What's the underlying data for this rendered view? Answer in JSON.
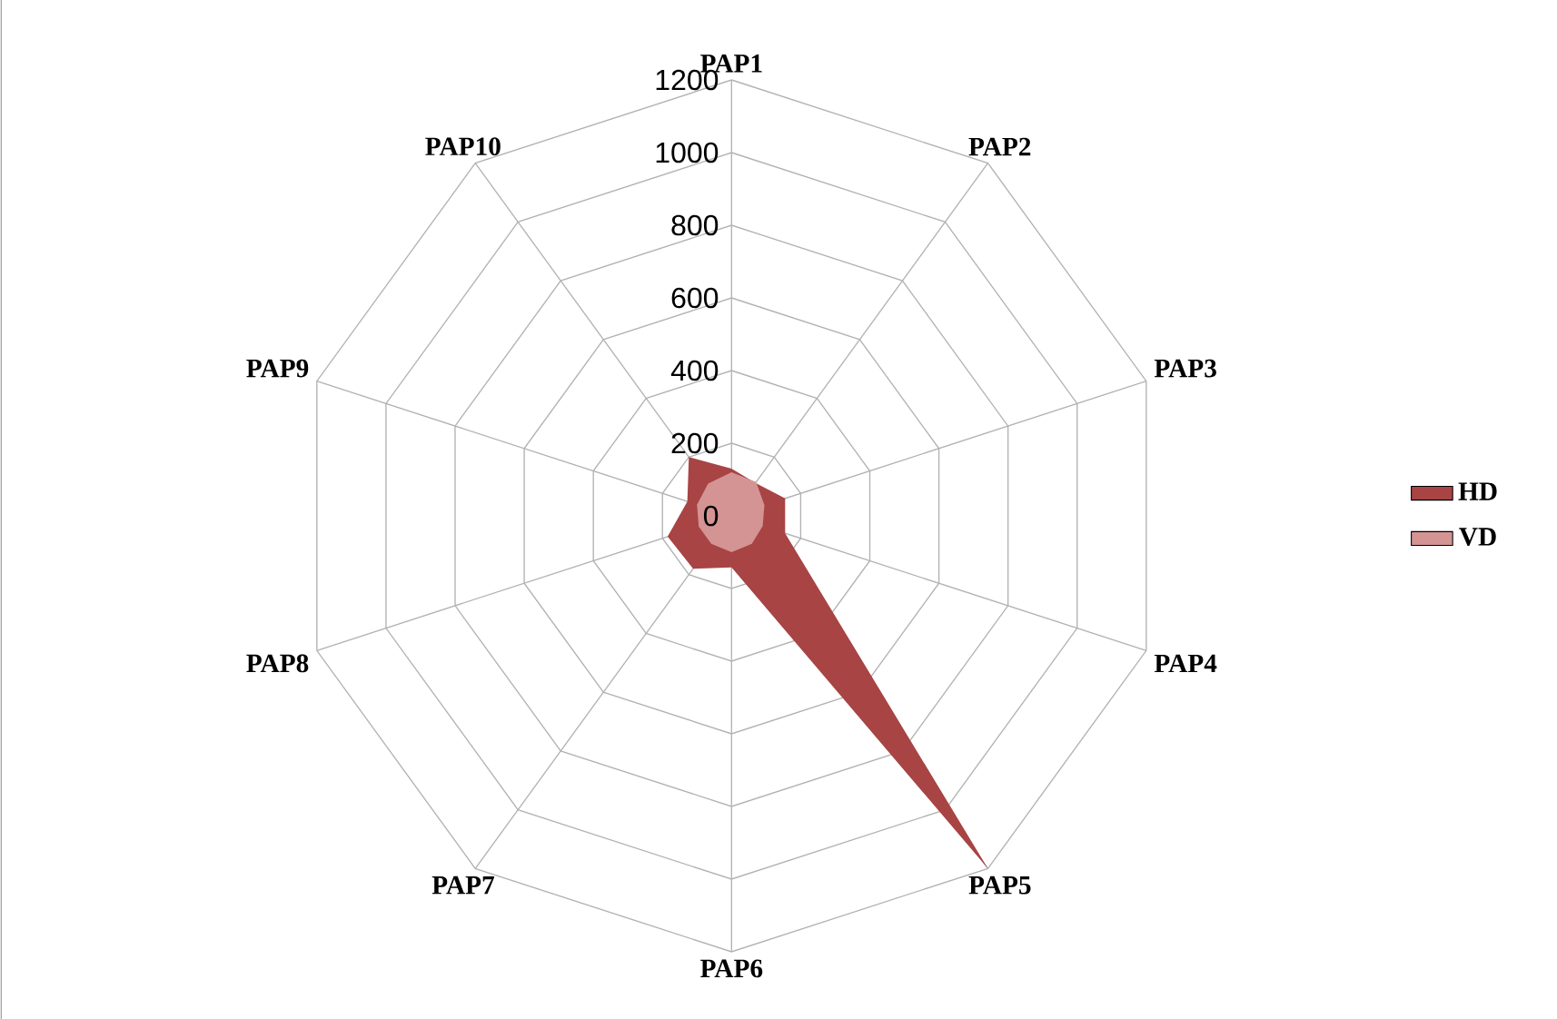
{
  "chart_data": {
    "type": "radar",
    "categories": [
      "PAP1",
      "PAP2",
      "PAP3",
      "PAP4",
      "PAP5",
      "PAP6",
      "PAP7",
      "PAP8",
      "PAP9",
      "PAP10"
    ],
    "ylim": [
      0,
      1200
    ],
    "yticks": [
      0,
      200,
      400,
      600,
      800,
      1000,
      1200
    ],
    "grid": true,
    "legend": "right",
    "series": [
      {
        "name": "HD",
        "color": "#a84444",
        "values": [
          130,
          112,
          155,
          155,
          1200,
          142,
          180,
          185,
          128,
          200
        ]
      },
      {
        "name": "VD",
        "color": "#d49494",
        "values": [
          120,
          115,
          95,
          90,
          95,
          100,
          95,
          95,
          100,
          110
        ]
      }
    ]
  }
}
